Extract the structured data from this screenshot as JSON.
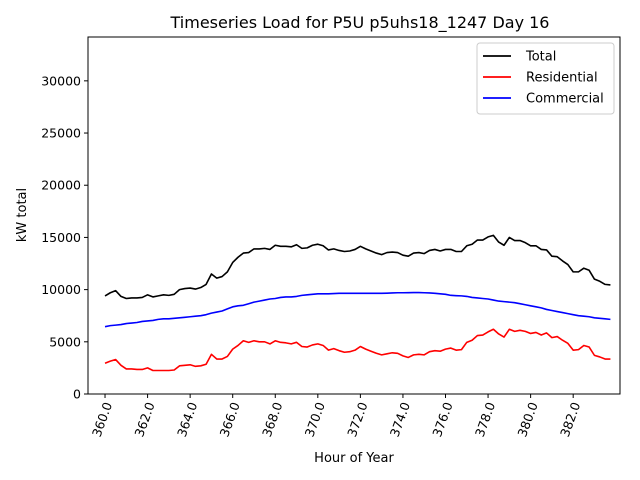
{
  "chart_data": {
    "type": "line",
    "title": "Timeseries Load for P5U p5uhs18_1247  Day 16",
    "xlabel": "Hour of Year",
    "ylabel": "kW total",
    "xlim": [
      359.2,
      384.2
    ],
    "ylim": [
      0,
      34200
    ],
    "grid": false,
    "legend_position": "top-right",
    "x_ticks": [
      360,
      362,
      364,
      366,
      368,
      370,
      372,
      374,
      376,
      378,
      380,
      382
    ],
    "x_tick_labels": [
      "360.0",
      "362.0",
      "364.0",
      "366.0",
      "368.0",
      "370.0",
      "372.0",
      "374.0",
      "376.0",
      "378.0",
      "380.0",
      "382.0"
    ],
    "y_ticks": [
      0,
      5000,
      10000,
      15000,
      20000,
      25000,
      30000
    ],
    "y_tick_labels": [
      "0",
      "5000",
      "10000",
      "15000",
      "20000",
      "25000",
      "30000"
    ],
    "x": [
      360.0,
      360.25,
      360.5,
      360.75,
      361.0,
      361.25,
      361.5,
      361.75,
      362.0,
      362.25,
      362.5,
      362.75,
      363.0,
      363.25,
      363.5,
      363.75,
      364.0,
      364.25,
      364.5,
      364.75,
      365.0,
      365.25,
      365.5,
      365.75,
      366.0,
      366.25,
      366.5,
      366.75,
      367.0,
      367.25,
      367.5,
      367.75,
      368.0,
      368.25,
      368.5,
      368.75,
      369.0,
      369.25,
      369.5,
      369.75,
      370.0,
      370.25,
      370.5,
      370.75,
      371.0,
      371.25,
      371.5,
      371.75,
      372.0,
      372.25,
      372.5,
      372.75,
      373.0,
      373.25,
      373.5,
      373.75,
      374.0,
      374.25,
      374.5,
      374.75,
      375.0,
      375.25,
      375.5,
      375.75,
      376.0,
      376.25,
      376.5,
      376.75,
      377.0,
      377.25,
      377.5,
      377.75,
      378.0,
      378.25,
      378.5,
      378.75,
      379.0,
      379.25,
      379.5,
      379.75,
      380.0,
      380.25,
      380.5,
      380.75,
      381.0,
      381.25,
      381.5,
      381.75,
      382.0,
      382.25,
      382.5,
      382.75,
      383.0,
      383.25,
      383.5,
      383.75
    ],
    "series": [
      {
        "name": "Total",
        "color": "#000000",
        "values": [
          9400,
          9700,
          9900,
          9350,
          9150,
          9200,
          9200,
          9250,
          9500,
          9300,
          9400,
          9500,
          9450,
          9550,
          10000,
          10100,
          10150,
          10050,
          10200,
          10500,
          11500,
          11100,
          11250,
          11700,
          12600,
          13100,
          13500,
          13550,
          13900,
          13900,
          13950,
          13850,
          14250,
          14150,
          14150,
          14100,
          14300,
          13950,
          14000,
          14250,
          14350,
          14200,
          13800,
          13900,
          13750,
          13650,
          13700,
          13850,
          14150,
          13900,
          13700,
          13500,
          13350,
          13550,
          13600,
          13550,
          13300,
          13200,
          13500,
          13550,
          13450,
          13750,
          13850,
          13700,
          13850,
          13850,
          13650,
          13650,
          14200,
          14350,
          14750,
          14750,
          15050,
          15200,
          14550,
          14250,
          15000,
          14700,
          14700,
          14500,
          14200,
          14200,
          13850,
          13800,
          13200,
          13150,
          12750,
          12400,
          11700,
          11700,
          12050,
          11850,
          11000,
          10800,
          10500,
          10450
        ]
      },
      {
        "name": "Residential",
        "color": "#ff0000",
        "values": [
          2950,
          3150,
          3300,
          2750,
          2400,
          2400,
          2350,
          2350,
          2500,
          2250,
          2250,
          2250,
          2250,
          2300,
          2700,
          2750,
          2800,
          2650,
          2700,
          2850,
          3800,
          3350,
          3350,
          3600,
          4300,
          4650,
          5100,
          4950,
          5100,
          5000,
          5000,
          4800,
          5100,
          4950,
          4900,
          4800,
          4950,
          4550,
          4500,
          4700,
          4800,
          4650,
          4200,
          4350,
          4150,
          4000,
          4050,
          4200,
          4550,
          4300,
          4100,
          3900,
          3750,
          3850,
          3950,
          3900,
          3650,
          3500,
          3750,
          3800,
          3750,
          4050,
          4150,
          4100,
          4300,
          4400,
          4200,
          4250,
          4950,
          5150,
          5600,
          5650,
          5950,
          6200,
          5750,
          5450,
          6200,
          6000,
          6100,
          6000,
          5800,
          5900,
          5650,
          5850,
          5400,
          5500,
          5150,
          4850,
          4200,
          4250,
          4650,
          4500,
          3700,
          3550,
          3350,
          3350
        ]
      },
      {
        "name": "Commercial",
        "color": "#0000ff",
        "values": [
          6450,
          6550,
          6600,
          6650,
          6750,
          6800,
          6850,
          6950,
          7000,
          7050,
          7150,
          7200,
          7200,
          7250,
          7300,
          7350,
          7400,
          7450,
          7500,
          7600,
          7750,
          7850,
          7950,
          8150,
          8350,
          8450,
          8500,
          8650,
          8800,
          8900,
          9000,
          9100,
          9150,
          9250,
          9300,
          9300,
          9350,
          9450,
          9500,
          9550,
          9600,
          9600,
          9600,
          9620,
          9650,
          9650,
          9650,
          9650,
          9650,
          9650,
          9650,
          9650,
          9650,
          9660,
          9680,
          9700,
          9700,
          9710,
          9720,
          9720,
          9700,
          9680,
          9650,
          9600,
          9550,
          9450,
          9420,
          9400,
          9350,
          9250,
          9200,
          9150,
          9100,
          9000,
          8900,
          8850,
          8800,
          8750,
          8650,
          8550,
          8450,
          8350,
          8250,
          8100,
          8000,
          7900,
          7800,
          7700,
          7600,
          7500,
          7450,
          7400,
          7300,
          7250,
          7200,
          7150
        ]
      }
    ]
  }
}
